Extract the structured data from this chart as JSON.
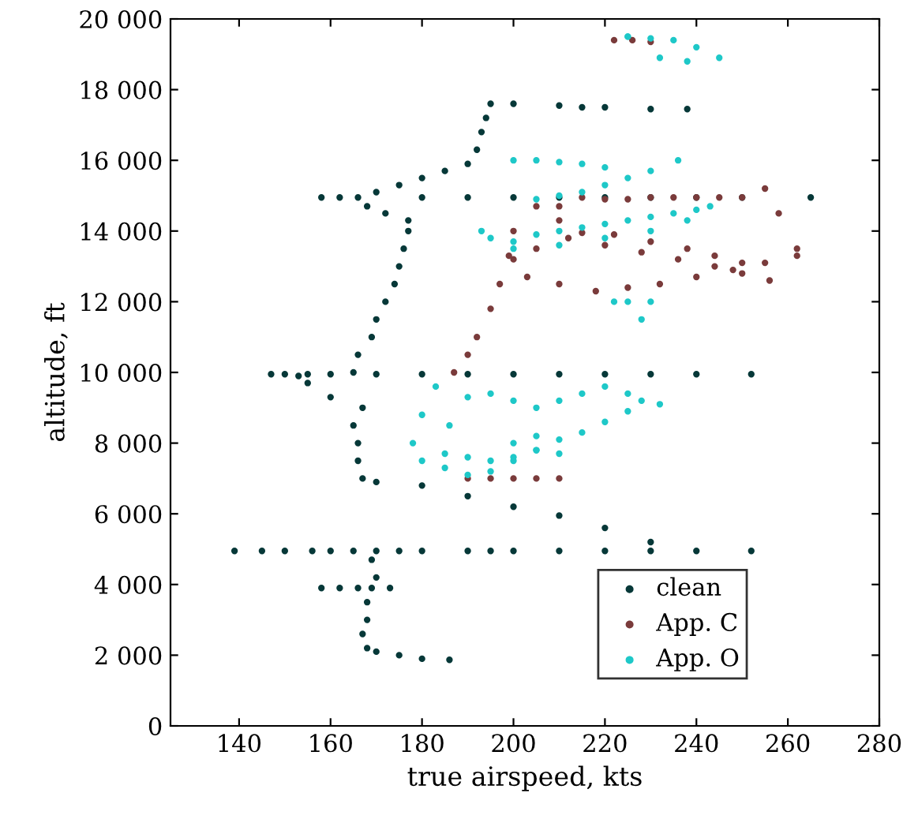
{
  "chart_data": {
    "type": "scatter",
    "xlabel": "true airspeed, kts",
    "ylabel": "altitude, ft",
    "xlim": [
      125,
      280
    ],
    "xticks": [
      140,
      160,
      180,
      200,
      220,
      240,
      260,
      280
    ],
    "ylim": [
      0,
      20000
    ],
    "yticks": [
      0,
      {
        "value": 2000,
        "label": "2 000"
      },
      {
        "value": 4000,
        "label": "4 000"
      },
      {
        "value": 6000,
        "label": "6 000"
      },
      {
        "value": 8000,
        "label": "8 000"
      },
      {
        "value": 10000,
        "label": "10 000"
      },
      {
        "value": 12000,
        "label": "12 000"
      },
      {
        "value": 14000,
        "label": "14 000"
      },
      {
        "value": 16000,
        "label": "16 000"
      },
      {
        "value": 18000,
        "label": "18 000"
      },
      {
        "value": 20000,
        "label": "20 000"
      }
    ],
    "grid": false,
    "legend": "bottom right",
    "marker": "circle",
    "series": [
      {
        "name": "clean",
        "color": "#063838",
        "x": [
          186,
          180,
          175,
          170,
          168,
          167,
          168,
          168,
          169,
          170,
          169,
          170,
          139,
          145,
          150,
          156,
          160,
          165,
          175,
          180,
          190,
          195,
          200,
          210,
          220,
          230,
          240,
          252,
          158,
          162,
          166,
          173,
          230,
          220,
          210,
          200,
          190,
          180,
          170,
          167,
          166,
          166,
          165,
          167,
          160,
          155,
          153,
          147,
          150,
          155,
          160,
          170,
          180,
          190,
          200,
          210,
          220,
          230,
          240,
          252,
          165,
          166,
          169,
          170,
          172,
          174,
          175,
          176,
          177,
          177,
          172,
          168,
          158,
          162,
          166,
          180,
          190,
          200,
          210,
          220,
          230,
          240,
          250,
          265,
          170,
          175,
          180,
          185,
          190,
          192,
          193,
          194,
          195,
          200,
          210,
          215,
          220,
          230,
          238
        ],
        "values": [
          1870,
          1900,
          2000,
          2100,
          2200,
          2600,
          3000,
          3500,
          3900,
          4200,
          4700,
          4950,
          4950,
          4950,
          4950,
          4950,
          4950,
          4950,
          4950,
          4950,
          4950,
          4950,
          4950,
          4950,
          4950,
          4950,
          4950,
          4950,
          3900,
          3900,
          3900,
          3900,
          5200,
          5600,
          5950,
          6200,
          6500,
          6800,
          6900,
          7000,
          7500,
          8000,
          8500,
          9000,
          9300,
          9700,
          9900,
          9950,
          9950,
          9950,
          9950,
          9950,
          9950,
          9950,
          9950,
          9950,
          9950,
          9950,
          9950,
          9950,
          10000,
          10500,
          11000,
          11500,
          12000,
          12500,
          13000,
          13500,
          14000,
          14300,
          14500,
          14700,
          14950,
          14950,
          14950,
          14950,
          14950,
          14950,
          14950,
          14950,
          14950,
          14950,
          14950,
          14950,
          15100,
          15300,
          15500,
          15700,
          15900,
          16300,
          16800,
          17200,
          17600,
          17600,
          17550,
          17500,
          17500,
          17450,
          17450
        ]
      },
      {
        "name": "App. C",
        "color": "#7a3b3b",
        "x": [
          187,
          190,
          192,
          195,
          197,
          199,
          200,
          205,
          210,
          215,
          220,
          225,
          230,
          235,
          240,
          245,
          250,
          255,
          258,
          262,
          262,
          255,
          248,
          240,
          232,
          225,
          218,
          210,
          203,
          200,
          205,
          212,
          220,
          228,
          236,
          244,
          250,
          256,
          210,
          215,
          222,
          230,
          238,
          244,
          250,
          190,
          195,
          200,
          205,
          210,
          222,
          226,
          230
        ],
        "values": [
          10000,
          10500,
          11000,
          11800,
          12500,
          13300,
          14000,
          14700,
          14700,
          14950,
          14900,
          14900,
          14950,
          14950,
          14950,
          14950,
          14950,
          15200,
          14500,
          13500,
          13300,
          13100,
          12900,
          12700,
          12500,
          12400,
          12300,
          12500,
          12700,
          13200,
          13500,
          13800,
          13600,
          13400,
          13200,
          13000,
          12800,
          12600,
          14300,
          13950,
          13900,
          13700,
          13500,
          13300,
          13100,
          7000,
          7000,
          7000,
          7000,
          7000,
          19400,
          19400,
          19350
        ]
      },
      {
        "name": "App. O",
        "color": "#1ec8c8",
        "x": [
          183,
          180,
          178,
          180,
          185,
          190,
          195,
          200,
          205,
          210,
          215,
          220,
          225,
          228,
          232,
          225,
          220,
          215,
          210,
          205,
          200,
          195,
          190,
          186,
          185,
          190,
          195,
          200,
          205,
          210,
          205,
          200,
          193,
          195,
          200,
          205,
          210,
          215,
          220,
          225,
          230,
          235,
          240,
          243,
          238,
          230,
          220,
          210,
          200,
          200,
          205,
          210,
          215,
          220,
          230,
          236,
          225,
          220,
          215,
          210,
          205,
          230,
          228,
          225,
          222,
          225,
          230,
          235,
          240,
          245,
          225,
          232,
          238
        ],
        "values": [
          9600,
          8800,
          8000,
          7500,
          7300,
          7100,
          7200,
          7500,
          7800,
          8100,
          8300,
          8600,
          8900,
          9200,
          9100,
          9400,
          9600,
          9400,
          9200,
          9000,
          9200,
          9400,
          9300,
          8500,
          7700,
          7600,
          7500,
          7600,
          7800,
          7700,
          8200,
          8000,
          14000,
          13800,
          13700,
          13900,
          14000,
          14100,
          14200,
          14300,
          14400,
          14500,
          14600,
          14700,
          14300,
          14000,
          13800,
          13600,
          13500,
          16000,
          16000,
          15950,
          15900,
          15800,
          15700,
          16000,
          15500,
          15300,
          15100,
          15000,
          14900,
          12000,
          11500,
          12000,
          12000,
          19500,
          19450,
          19400,
          19200,
          18900,
          19500,
          18900,
          18800
        ]
      }
    ]
  }
}
